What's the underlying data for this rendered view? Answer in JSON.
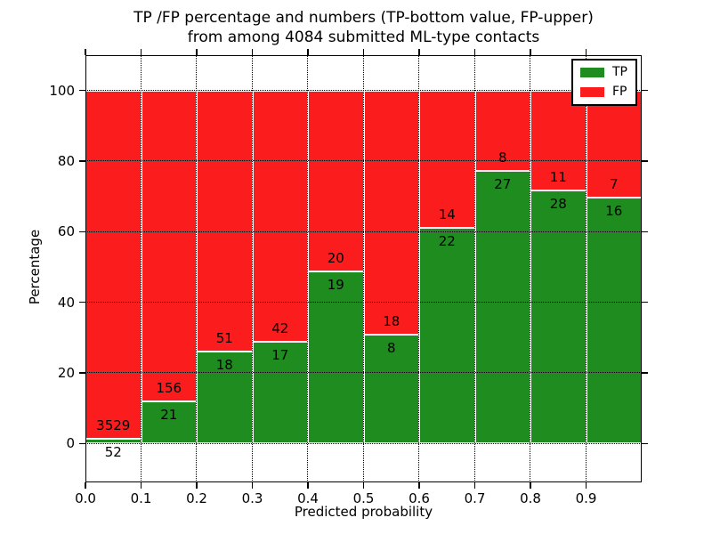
{
  "chart_data": {
    "type": "bar",
    "stacked": true,
    "normalized_to_percent": true,
    "title_lines": [
      "TP /FP percentage and numbers (TP-bottom value, FP-upper)",
      "from among 4084 submitted ML-type contacts"
    ],
    "total_contacts": 4084,
    "xlabel": "Predicted probability",
    "ylabel": "Percentage",
    "xlim": [
      0.0,
      1.0
    ],
    "ylim": [
      -11,
      110
    ],
    "bin_edges": [
      0.0,
      0.1,
      0.2,
      0.3,
      0.4,
      0.5,
      0.6,
      0.7,
      0.8,
      0.9,
      1.0
    ],
    "x_tick_labels": [
      "0.0",
      "0.1",
      "0.2",
      "0.3",
      "0.4",
      "0.5",
      "0.6",
      "0.7",
      "0.8",
      "0.9"
    ],
    "y_tick_labels": [
      "0",
      "20",
      "40",
      "60",
      "80",
      "100"
    ],
    "grid_style": "dotted",
    "bar_edge_color": "#ffffff",
    "legend": {
      "position": "upper right",
      "entries": [
        "TP",
        "FP"
      ]
    },
    "series": [
      {
        "name": "TP",
        "color": "#1e8c1e",
        "counts": [
          52,
          21,
          18,
          17,
          19,
          8,
          22,
          27,
          28,
          16
        ]
      },
      {
        "name": "FP",
        "color": "#fb1d1d",
        "counts": [
          3529,
          156,
          51,
          42,
          20,
          18,
          14,
          8,
          11,
          7
        ]
      }
    ]
  }
}
